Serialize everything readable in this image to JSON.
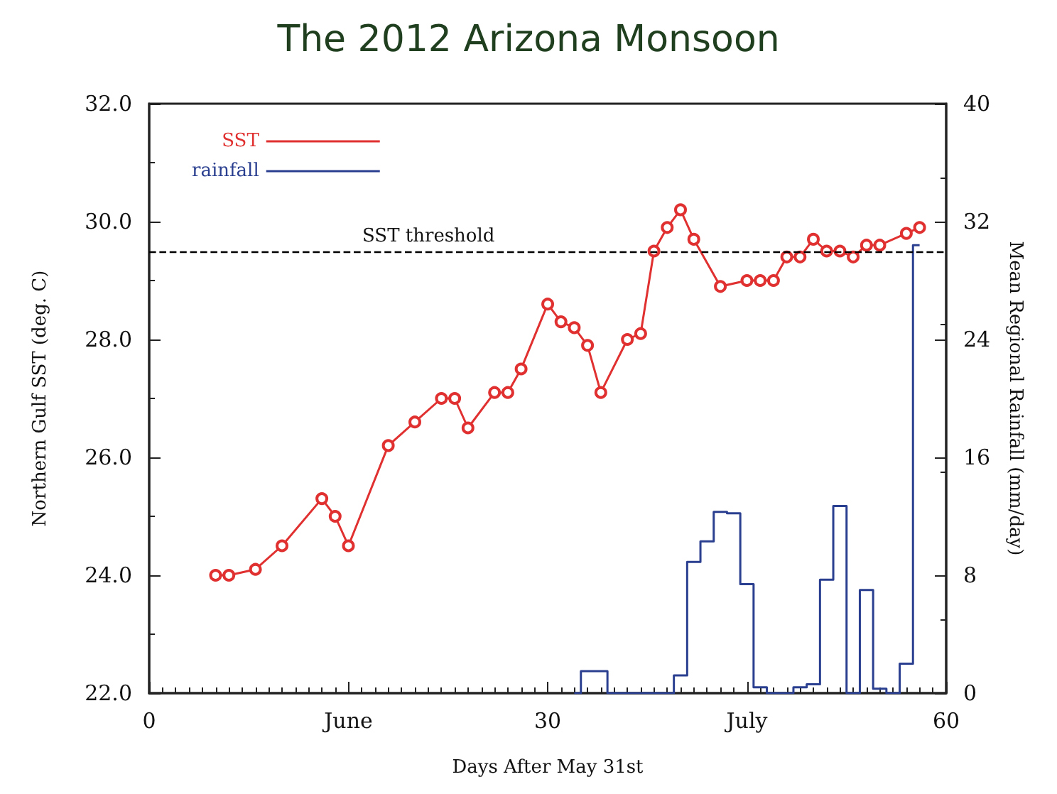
{
  "chart_data": {
    "type": "line",
    "title": "The 2012 Arizona Monsoon",
    "xlabel": "Days After May 31st",
    "ylabel": "Northern Gulf SST (deg. C)",
    "y2label": "Mean Regional Rainfall (mm/day)",
    "xlim": [
      0,
      60
    ],
    "xticks": [
      0,
      {
        "value": 15,
        "label": "June"
      },
      30,
      {
        "value": 45,
        "label": "July"
      },
      60
    ],
    "ylim": [
      22,
      32
    ],
    "yticks": [
      {
        "value": 22,
        "label": "22.0"
      },
      {
        "value": 24,
        "label": "24.0"
      },
      {
        "value": 26,
        "label": "26.0"
      },
      {
        "value": 28,
        "label": "28.0"
      },
      {
        "value": 30,
        "label": "30.0"
      },
      {
        "value": 32,
        "label": "32.0"
      }
    ],
    "y2lim": [
      0,
      40
    ],
    "y2ticks": [
      0,
      8,
      16,
      24,
      32,
      40
    ],
    "legend": "top left",
    "grid": false,
    "series": [
      {
        "name": "SST",
        "type": "line",
        "color": "#e03030",
        "marker": "circle",
        "x": [
          5,
          6,
          8,
          10,
          13,
          14,
          15,
          18,
          20,
          22,
          23,
          24,
          26,
          27,
          28,
          30,
          31,
          32,
          33,
          34,
          36,
          37,
          38,
          39,
          40,
          41,
          43,
          45,
          46,
          47,
          48,
          49,
          50,
          51,
          52,
          53,
          54,
          55,
          57,
          58
        ],
        "values": [
          24.0,
          24.0,
          24.1,
          24.5,
          25.3,
          25.0,
          24.5,
          26.2,
          26.6,
          27.0,
          27.0,
          26.5,
          27.1,
          27.1,
          27.5,
          28.6,
          28.3,
          28.2,
          27.9,
          27.1,
          28.0,
          28.1,
          29.5,
          29.9,
          30.2,
          29.7,
          28.9,
          29.0,
          29.0,
          29.0,
          29.4,
          29.4,
          29.7,
          29.5,
          29.5,
          29.4,
          29.6,
          29.6,
          29.8,
          29.9
        ]
      },
      {
        "name": "rainfall",
        "type": "step",
        "axis": "y2",
        "color": "#2a3f8f",
        "marker": "none",
        "x": [
          32,
          33,
          34,
          35,
          36,
          37,
          38,
          39,
          40,
          41,
          42,
          43,
          44,
          45,
          46,
          47,
          48,
          49,
          50,
          51,
          52,
          53,
          54,
          55,
          56,
          57,
          58
        ],
        "values": [
          0,
          1.5,
          1.5,
          0,
          0,
          0,
          0,
          0,
          1.2,
          8.9,
          10.3,
          12.3,
          12.2,
          7.4,
          0.4,
          0,
          0,
          0.4,
          0.6,
          7.7,
          12.7,
          0,
          7.0,
          0.3,
          0,
          2.0,
          30.4
        ]
      }
    ],
    "ref_lines": [
      {
        "axis": "y",
        "value": 29.5,
        "label": "SST threshold",
        "color": "#000000",
        "line_style": "dashed"
      }
    ]
  }
}
